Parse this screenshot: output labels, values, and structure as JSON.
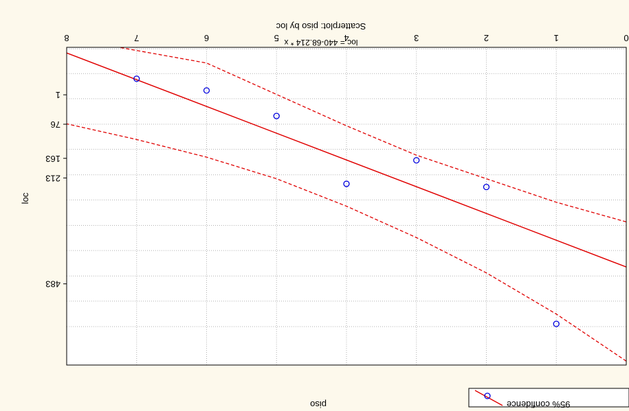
{
  "colors": {
    "background": "#fdf9ec",
    "plot_area": "#ffffff",
    "grid": "#b0b0b0",
    "fit_line": "#e00000",
    "points": "#0000dd"
  },
  "chart_data": {
    "type": "scatter",
    "rendered_mirrored": true,
    "title": "Scatterplot: piso by loc",
    "subtitle": "loc = 440-68.214 * x",
    "xlabel": "piso",
    "ylabel": "loc",
    "xlim": [
      0,
      8
    ],
    "ylim": [
      -120,
      690
    ],
    "grid": true,
    "x_ticks": [
      "0",
      "1",
      "2",
      "3",
      "4",
      "5",
      "6",
      "7",
      "8"
    ],
    "y_ticks": [
      "1",
      "76",
      "163",
      "213",
      "483"
    ],
    "y_tick_values": [
      1,
      76,
      163,
      213,
      483
    ],
    "legend_label": "95% confidence",
    "legend_position": "bottom-right",
    "series": [
      {
        "x": [
          1,
          2,
          3,
          4,
          5,
          6,
          7
        ],
        "y": [
          585,
          236,
          168,
          228,
          55,
          -10,
          -40
        ]
      }
    ],
    "fit_line": {
      "intercept": 440,
      "slope": -68.214
    },
    "confidence_upper": {
      "x": [
        0,
        1,
        2,
        3,
        4,
        5,
        6,
        7,
        8
      ],
      "y": [
        680,
        560,
        455,
        365,
        285,
        215,
        160,
        115,
        75
      ]
    },
    "confidence_lower": {
      "x": [
        0,
        1,
        2,
        3,
        4,
        5,
        6,
        7.25
      ],
      "y": [
        325,
        275,
        215,
        155,
        80,
        0,
        -80,
        -120
      ]
    }
  }
}
